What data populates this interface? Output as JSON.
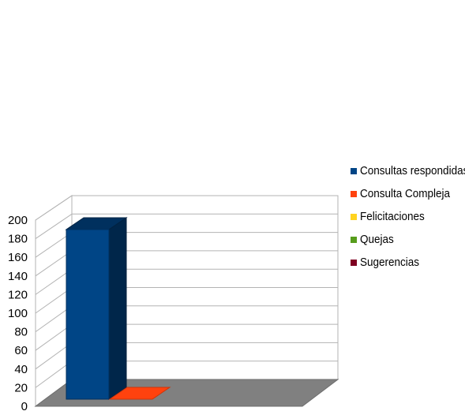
{
  "chart_data": {
    "type": "bar",
    "title": "",
    "xlabel": "",
    "ylabel": "",
    "ylim": [
      0,
      200
    ],
    "yticks": [
      0,
      20,
      40,
      60,
      80,
      100,
      120,
      140,
      160,
      180,
      200
    ],
    "grid": true,
    "legend_position": "right",
    "series": [
      {
        "name": "Consultas respondidas",
        "values": [
          185
        ],
        "color": "#004586"
      },
      {
        "name": "Consulta Compleja",
        "values": [
          1
        ],
        "color": "#ff420e"
      },
      {
        "name": "Felicitaciones",
        "values": [
          0
        ],
        "color": "#ffd320"
      },
      {
        "name": "Quejas",
        "values": [
          0
        ],
        "color": "#579d1c"
      },
      {
        "name": "Sugerencias",
        "values": [
          0
        ],
        "color": "#7e0021"
      }
    ]
  }
}
